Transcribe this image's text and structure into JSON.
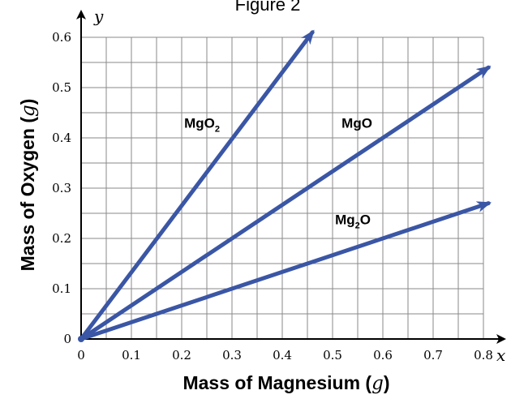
{
  "chart_data": {
    "type": "line",
    "title": "Figure 2",
    "xlabel": {
      "prefix": "Mass of Magnesium (",
      "var": "g",
      "suffix": ")"
    },
    "ylabel": {
      "prefix": "Mass of Oxygen (",
      "var": "g",
      "suffix": ")"
    },
    "x_axis_name": "x",
    "y_axis_name": "y",
    "xlim": [
      0,
      0.8
    ],
    "ylim": [
      0,
      0.6
    ],
    "xticks": [
      "0",
      "0.1",
      "0.2",
      "0.3",
      "0.4",
      "0.5",
      "0.6",
      "0.7",
      "0.8"
    ],
    "yticks": [
      "0",
      "0.1",
      "0.2",
      "0.3",
      "0.4",
      "0.5",
      "0.6"
    ],
    "grid": true,
    "line_color": "#3a56a5",
    "series": [
      {
        "name": {
          "base": "MgO",
          "sub": "2"
        },
        "x": [
          0,
          0.46
        ],
        "y": [
          0,
          0.61
        ],
        "slope": 1.333
      },
      {
        "name": {
          "base": "MgO",
          "sub": ""
        },
        "x": [
          0,
          0.81
        ],
        "y": [
          0,
          0.54
        ],
        "slope": 0.667
      },
      {
        "name": {
          "base": "Mg",
          "sub": "2",
          "tail": "O"
        },
        "x": [
          0,
          0.81
        ],
        "y": [
          0,
          0.27
        ],
        "slope": 0.333
      }
    ]
  }
}
